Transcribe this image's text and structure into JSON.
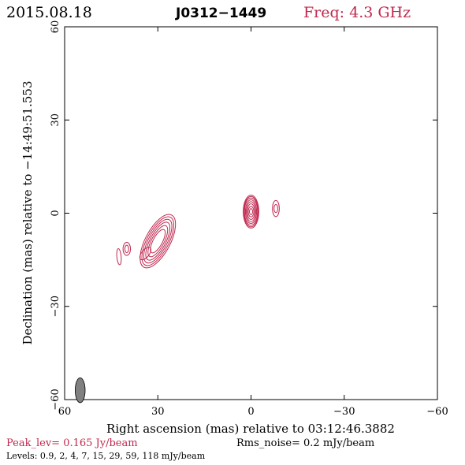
{
  "header": {
    "date": "2015.08.18",
    "source": "J0312−1449",
    "freq": "Freq: 4.3 GHz"
  },
  "footer": {
    "peak": "Peak_lev=  0.165 Jy/beam",
    "rms": "Rms_noise=  0.2 mJy/beam",
    "levels": "Levels: 0.9,   2,   4,   7,  15,  29,  59, 118 mJy/beam"
  },
  "colors": {
    "contour": "#c0284f",
    "beam": "#808080",
    "text_accent": "#c0284f"
  },
  "chart_data": {
    "type": "contour",
    "title": "J0312−1449",
    "xlabel": "Right ascension (mas) relative to 03:12:46.3882",
    "ylabel": "Declination (mas) relative to −14:49:51.553",
    "xlim": [
      60,
      -60
    ],
    "ylim": [
      -60,
      60
    ],
    "x_ticks": [
      60,
      30,
      0,
      -30,
      -60
    ],
    "y_ticks": [
      -60,
      -30,
      0,
      30,
      60
    ],
    "x_tick_labels": [
      "60",
      "30",
      "0",
      "−30",
      "−60"
    ],
    "y_tick_labels": [
      "−60",
      "−30",
      "0",
      "30",
      "60"
    ],
    "levels_mJy": [
      0.9,
      2,
      4,
      7,
      15,
      29,
      59,
      118
    ],
    "beam": {
      "x": 55,
      "y": -57,
      "major_mas": 4.0,
      "minor_mas": 1.6,
      "pa_deg": 0
    },
    "components": [
      {
        "name": "core",
        "x": 0,
        "y": 0.5,
        "contours": [
          {
            "a": 5.3,
            "b": 2.5,
            "angle": 90
          },
          {
            "a": 4.9,
            "b": 2.3,
            "angle": 90
          },
          {
            "a": 4.4,
            "b": 2.1,
            "angle": 90
          },
          {
            "a": 3.8,
            "b": 1.8,
            "angle": 90
          },
          {
            "a": 3.2,
            "b": 1.5,
            "angle": 90
          },
          {
            "a": 2.5,
            "b": 1.2,
            "angle": 90
          },
          {
            "a": 1.7,
            "b": 0.9,
            "angle": 90
          },
          {
            "a": 1.0,
            "b": 0.5,
            "angle": 90
          }
        ]
      },
      {
        "name": "east-knot",
        "x": -8,
        "y": 1.5,
        "contours": [
          {
            "a": 2.6,
            "b": 1.1,
            "angle": 90
          },
          {
            "a": 1.3,
            "b": 0.6,
            "angle": 90
          }
        ]
      },
      {
        "name": "west-jet-main",
        "x": 30,
        "y": -9,
        "contours": [
          {
            "a": 9.5,
            "b": 4.0,
            "angle": 62
          },
          {
            "a": 8.7,
            "b": 3.5,
            "angle": 62
          },
          {
            "a": 7.8,
            "b": 3.0,
            "angle": 62
          },
          {
            "a": 6.8,
            "b": 2.5,
            "angle": 62
          },
          {
            "a": 5.6,
            "b": 2.0,
            "angle": 62
          },
          {
            "a": 4.2,
            "b": 1.5,
            "angle": 62
          }
        ]
      },
      {
        "name": "west-jet-tail",
        "x": 34,
        "y": -13,
        "contours": [
          {
            "a": 2.4,
            "b": 1.2,
            "angle": 50
          }
        ]
      },
      {
        "name": "west-knot-1",
        "x": 40,
        "y": -11.5,
        "contours": [
          {
            "a": 2.1,
            "b": 1.2,
            "angle": 90
          },
          {
            "a": 1.2,
            "b": 0.6,
            "angle": 90
          }
        ]
      },
      {
        "name": "west-knot-2",
        "x": 42.5,
        "y": -14,
        "contours": [
          {
            "a": 2.6,
            "b": 0.7,
            "angle": 95
          }
        ]
      }
    ]
  }
}
